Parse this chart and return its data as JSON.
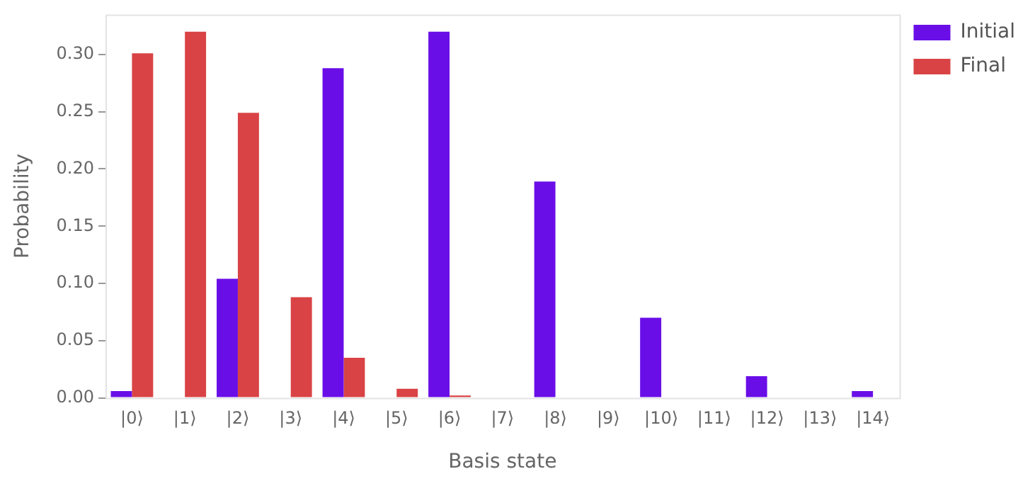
{
  "chart_data": {
    "type": "bar",
    "xlabel": "Basis state",
    "ylabel": "Probability",
    "categories": [
      "|0⟩",
      "|1⟩",
      "|2⟩",
      "|3⟩",
      "|4⟩",
      "|5⟩",
      "|6⟩",
      "|7⟩",
      "|8⟩",
      "|9⟩",
      "|10⟩",
      "|11⟩",
      "|12⟩",
      "|13⟩",
      "|14⟩"
    ],
    "series": [
      {
        "name": "Initial",
        "color": "#6a0ee8",
        "values": [
          0.006,
          0,
          0.104,
          0,
          0.288,
          0,
          0.32,
          0,
          0.189,
          0,
          0.07,
          0,
          0.019,
          0,
          0.006
        ]
      },
      {
        "name": "Final",
        "color": "#d94345",
        "values": [
          0.301,
          0.32,
          0.249,
          0.088,
          0.035,
          0.008,
          0.002,
          0,
          0,
          0,
          0,
          0,
          0,
          0,
          0
        ]
      }
    ],
    "ylim": [
      0,
      0.335
    ],
    "yticks": [
      {
        "value": 0,
        "label": "0.00"
      },
      0.05,
      {
        "value": 0.1,
        "label": "0.10"
      },
      0.15,
      {
        "value": 0.2,
        "label": "0.20"
      },
      0.25,
      {
        "value": 0.3,
        "label": "0.30"
      }
    ],
    "grid": false,
    "legend": "top right"
  }
}
